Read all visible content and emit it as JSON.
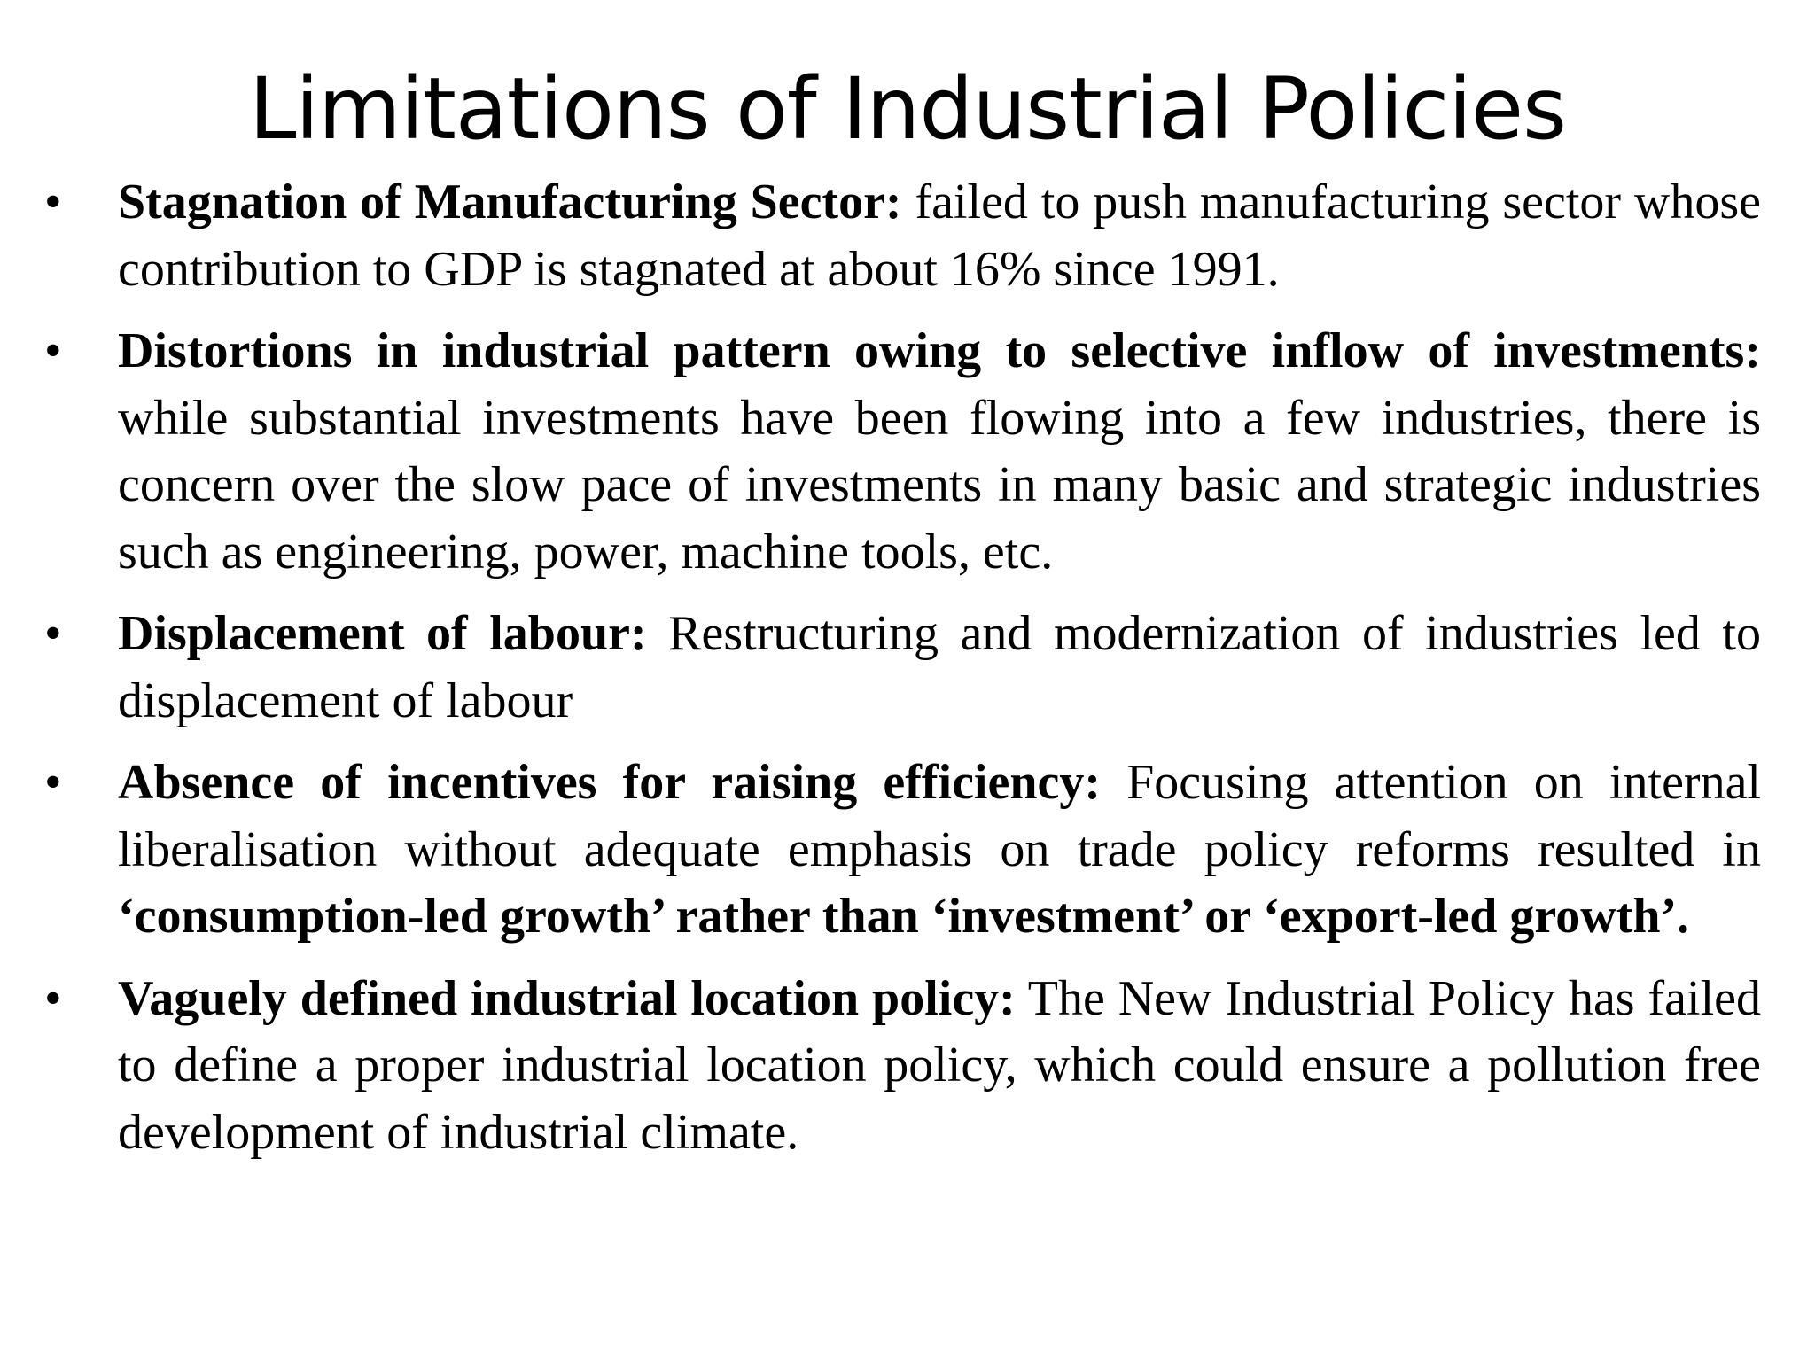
{
  "slide": {
    "title": "Limitations of Industrial Policies",
    "bullet_marker": "•",
    "bullets": [
      {
        "heading": "Stagnation of Manufacturing Sector:",
        "text": " failed to push manufacturing sector whose contribution to GDP is stagnated at about 16% since 1991."
      },
      {
        "heading": "Distortions in industrial pattern owing to selective inflow of investments:",
        "text": " while substantial investments have been flowing into a few industries, there is concern over the slow pace of investments in many basic and strategic industries such as engineering, power, machine tools, etc."
      },
      {
        "heading": "Displacement of labour:",
        "text": " Restructuring and modernization of industries led to displacement of labour"
      },
      {
        "heading": "Absence of incentives for raising efficiency:",
        "text": " Focusing attention on internal liberalisation without adequate emphasis on trade policy reforms resulted in ",
        "emphasis": "‘consumption-led growth’ rather than ‘investment’ or ‘export-led growth’."
      },
      {
        "heading": "Vaguely defined industrial location policy:",
        "text": " The New Industrial Policy has failed to define a proper industrial location policy, which could ensure a pollution free development of industrial climate."
      }
    ]
  }
}
